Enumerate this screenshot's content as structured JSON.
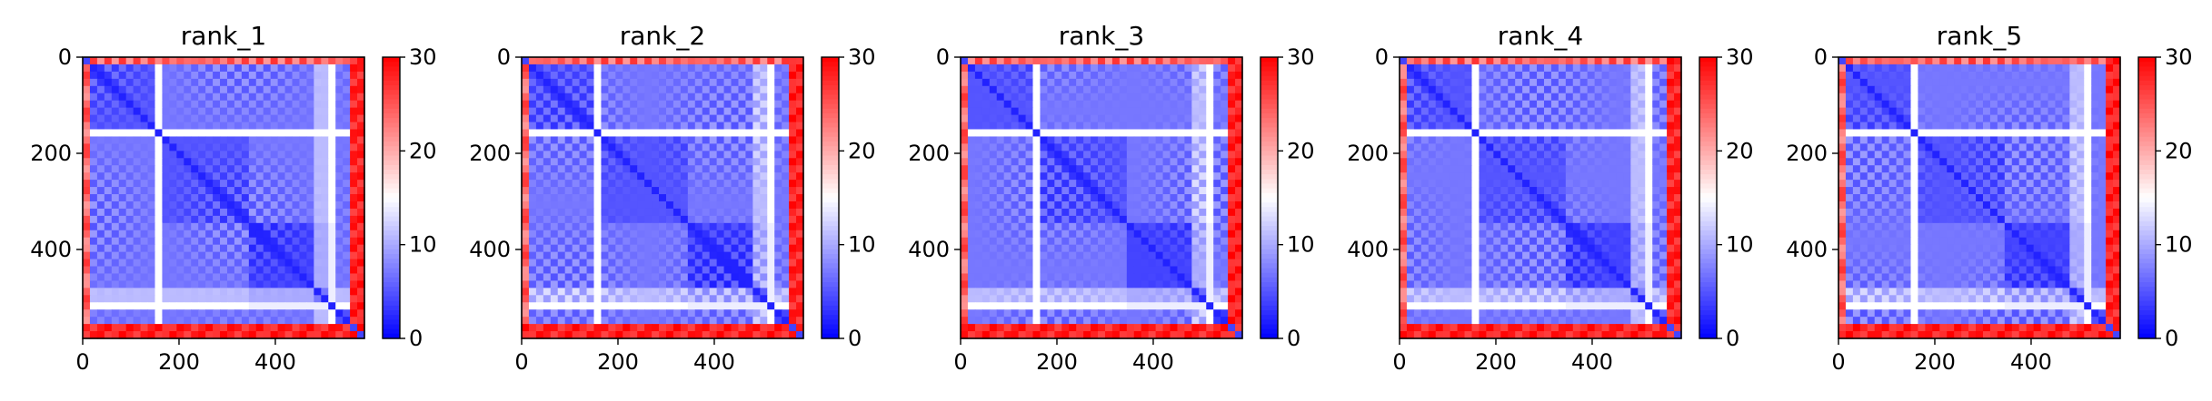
{
  "chart_data": [
    {
      "type": "heatmap",
      "title": "rank_1",
      "xlim": [
        0,
        585
      ],
      "ylim": [
        585,
        0
      ],
      "x_ticks": [
        "0",
        "200",
        "400"
      ],
      "y_ticks": [
        "0",
        "200",
        "400"
      ],
      "colorbar": {
        "colormap": "bwr",
        "range": [
          0,
          30
        ],
        "ticks": [
          "0",
          "10",
          "20",
          "30"
        ]
      },
      "grid": false,
      "legend": "none",
      "matrix_size": 585,
      "approx_domain_boundaries": [
        160,
        345,
        480,
        515
      ]
    },
    {
      "type": "heatmap",
      "title": "rank_2",
      "xlim": [
        0,
        585
      ],
      "ylim": [
        585,
        0
      ],
      "x_ticks": [
        "0",
        "200",
        "400"
      ],
      "y_ticks": [
        "0",
        "200",
        "400"
      ],
      "colorbar": {
        "colormap": "bwr",
        "range": [
          0,
          30
        ],
        "ticks": [
          "0",
          "10",
          "20",
          "30"
        ]
      },
      "grid": false,
      "legend": "none",
      "matrix_size": 585,
      "approx_domain_boundaries": [
        160,
        345,
        480,
        515
      ]
    },
    {
      "type": "heatmap",
      "title": "rank_3",
      "xlim": [
        0,
        585
      ],
      "ylim": [
        585,
        0
      ],
      "x_ticks": [
        "0",
        "200",
        "400"
      ],
      "y_ticks": [
        "0",
        "200",
        "400"
      ],
      "colorbar": {
        "colormap": "bwr",
        "range": [
          0,
          30
        ],
        "ticks": [
          "0",
          "10",
          "20",
          "30"
        ]
      },
      "grid": false,
      "legend": "none",
      "matrix_size": 585,
      "approx_domain_boundaries": [
        160,
        345,
        480,
        515
      ]
    },
    {
      "type": "heatmap",
      "title": "rank_4",
      "xlim": [
        0,
        585
      ],
      "ylim": [
        585,
        0
      ],
      "x_ticks": [
        "0",
        "200",
        "400"
      ],
      "y_ticks": [
        "0",
        "200",
        "400"
      ],
      "colorbar": {
        "colormap": "bwr",
        "range": [
          0,
          30
        ],
        "ticks": [
          "0",
          "10",
          "20",
          "30"
        ]
      },
      "grid": false,
      "legend": "none",
      "matrix_size": 585,
      "approx_domain_boundaries": [
        160,
        345,
        480,
        515
      ]
    },
    {
      "type": "heatmap",
      "title": "rank_5",
      "xlim": [
        0,
        585
      ],
      "ylim": [
        585,
        0
      ],
      "x_ticks": [
        "0",
        "200",
        "400"
      ],
      "y_ticks": [
        "0",
        "200",
        "400"
      ],
      "colorbar": {
        "colormap": "bwr",
        "range": [
          0,
          30
        ],
        "ticks": [
          "0",
          "10",
          "20",
          "30"
        ]
      },
      "grid": false,
      "legend": "none",
      "matrix_size": 585,
      "approx_domain_boundaries": [
        160,
        345,
        480,
        515
      ]
    }
  ],
  "colors": {
    "low": "#0000ff",
    "mid": "#ffffff",
    "high": "#ff0000",
    "axis": "#000000"
  }
}
